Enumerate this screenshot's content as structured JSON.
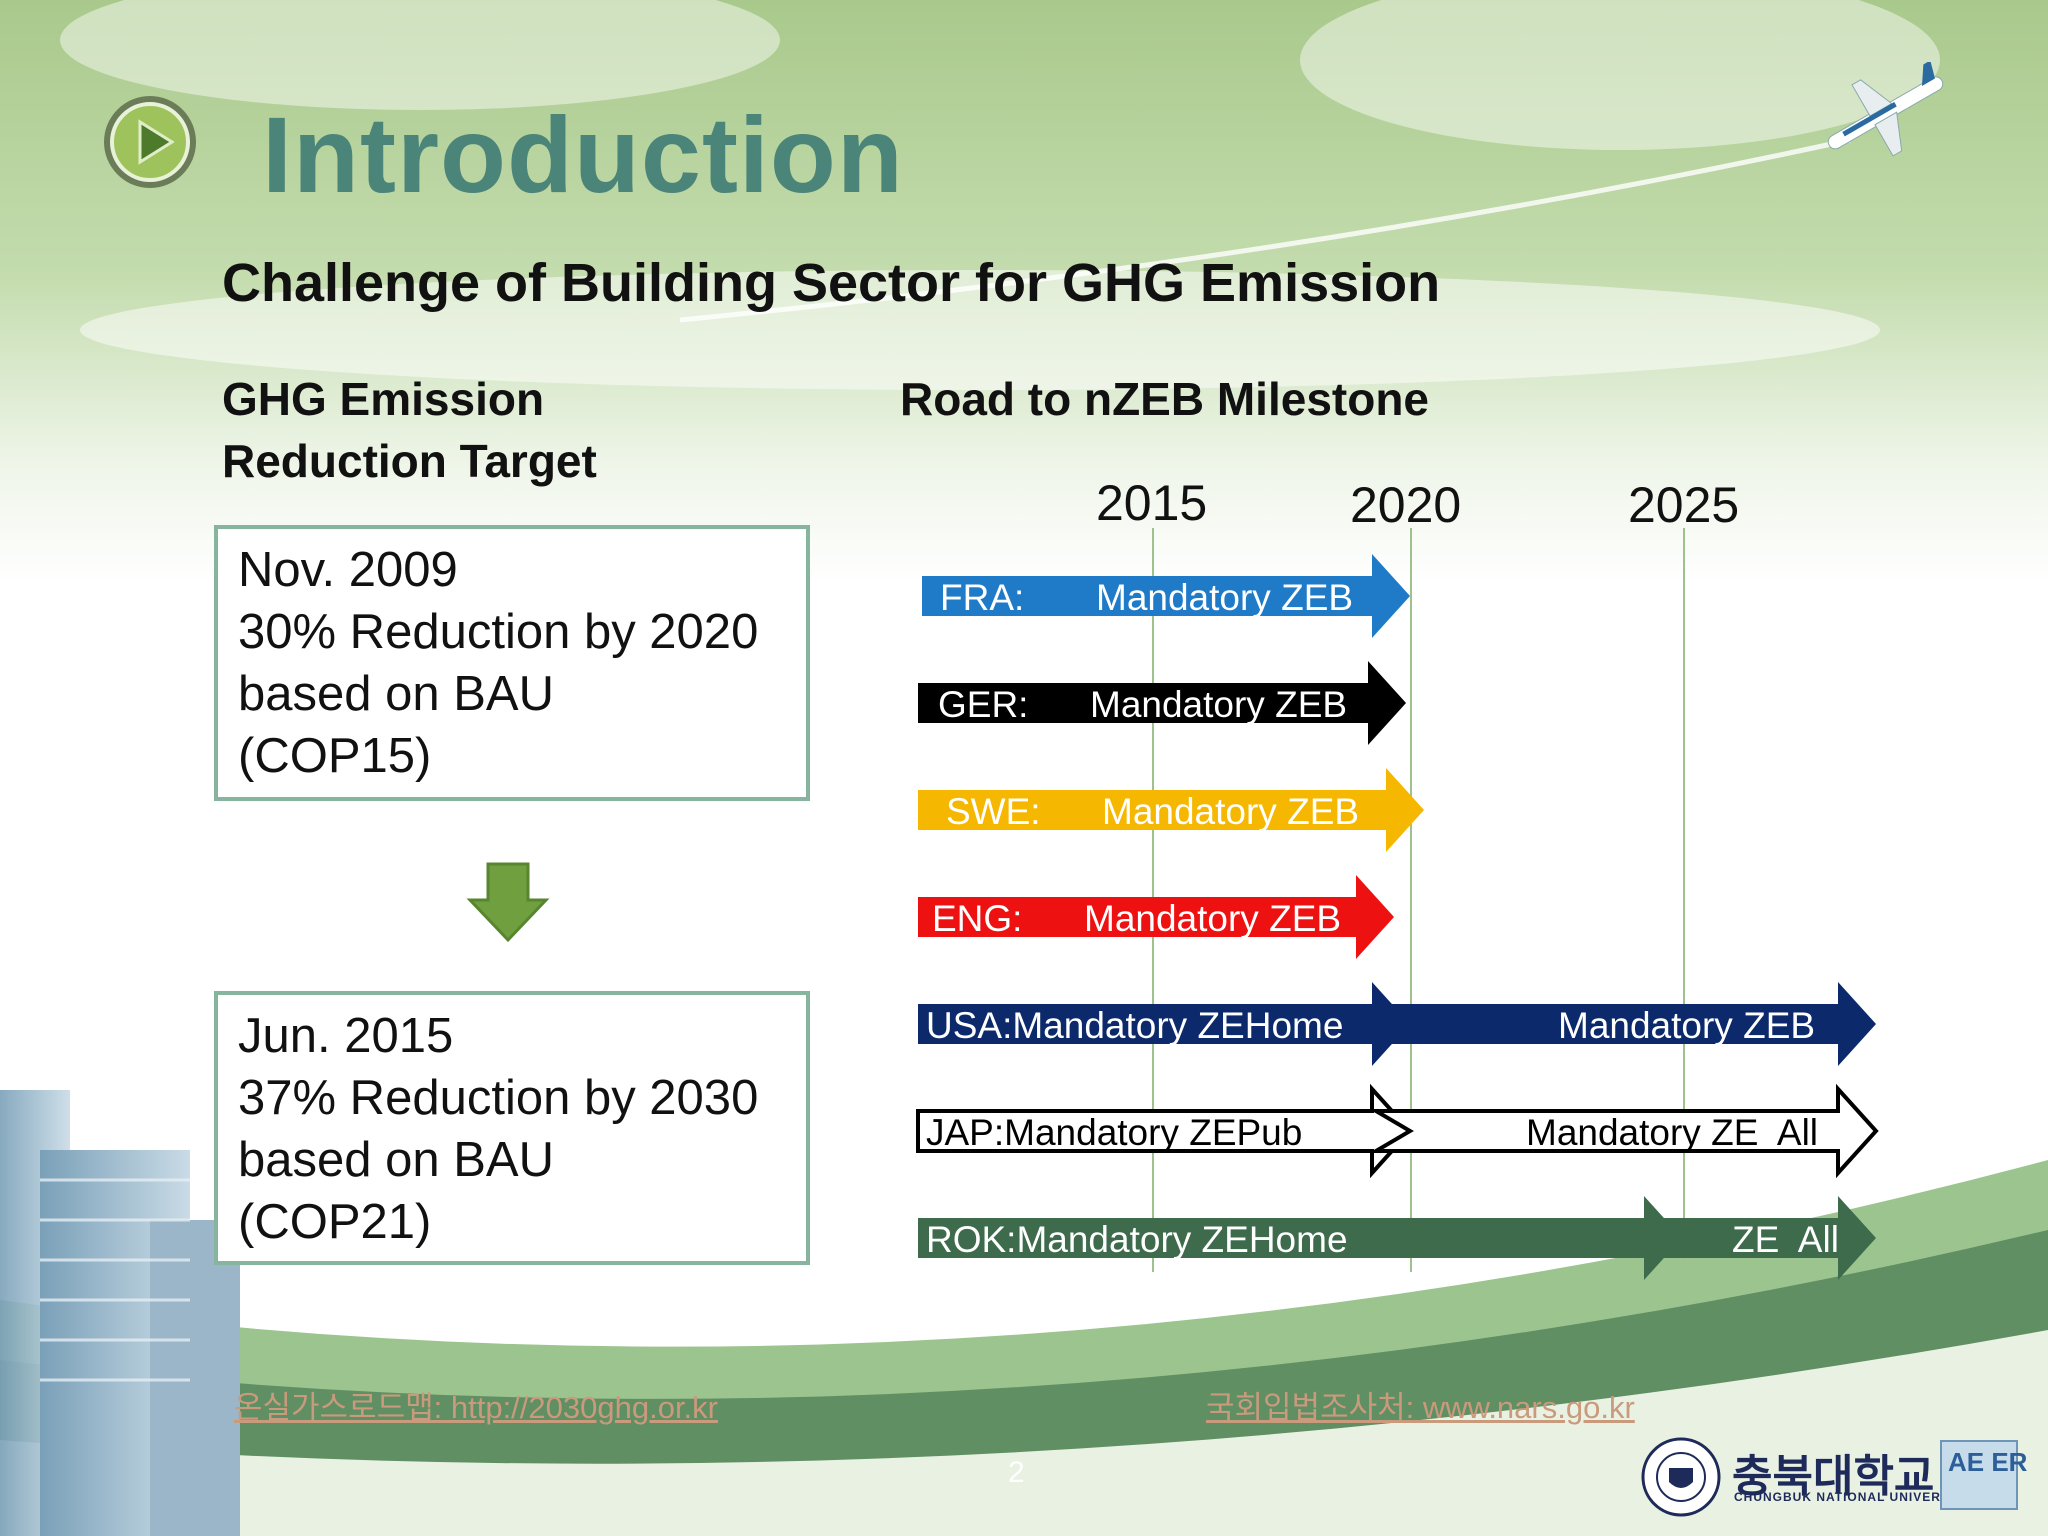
{
  "slide": {
    "title": "Introduction",
    "subtitle": "Challenge of Building Sector for GHG Emission",
    "page_number": "2"
  },
  "left": {
    "heading_line1": "GHG Emission",
    "heading_line2": "Reduction Target",
    "box1": [
      "Nov. 2009",
      "30% Reduction by 2020",
      "based on BAU",
      "(COP15)"
    ],
    "box2": [
      "Jun. 2015",
      "37% Reduction by 2030",
      "based on BAU",
      "(COP21)"
    ]
  },
  "right": {
    "heading": "Road to nZEB Milestone",
    "years": [
      "2015",
      "2020",
      "2025"
    ]
  },
  "milestones": [
    {
      "country": "FRA:",
      "label": "Mandatory ZEB",
      "color": "#1f7ac8"
    },
    {
      "country": "GER:",
      "label": "Mandatory ZEB",
      "color": "#000000"
    },
    {
      "country": "SWE:",
      "label": "Mandatory ZEB",
      "color": "#f6b700"
    },
    {
      "country": "ENG:",
      "label": "Mandatory ZEB",
      "color": "#ee1111"
    },
    {
      "label1": "USA:Mandatory ZEHome",
      "label2": "Mandatory ZEB",
      "color": "#0c2a6b"
    },
    {
      "label1": "JAP:Mandatory ZEPub",
      "label2": "Mandatory ZE  All",
      "color": "#ffffff"
    },
    {
      "label1": "ROK:Mandatory ZEHome",
      "label2": "ZE  All",
      "color": "#3d6b4c"
    }
  ],
  "sources": {
    "left": "온실가스로드맵: http://2030ghg.or.kr",
    "right": "국회입법조사처: www.nars.go.kr"
  },
  "logos": {
    "university_kr": "충북대학교",
    "university_en": "CHUNGBUK NATIONAL UNIVERSITY",
    "lab": "AE ER"
  }
}
